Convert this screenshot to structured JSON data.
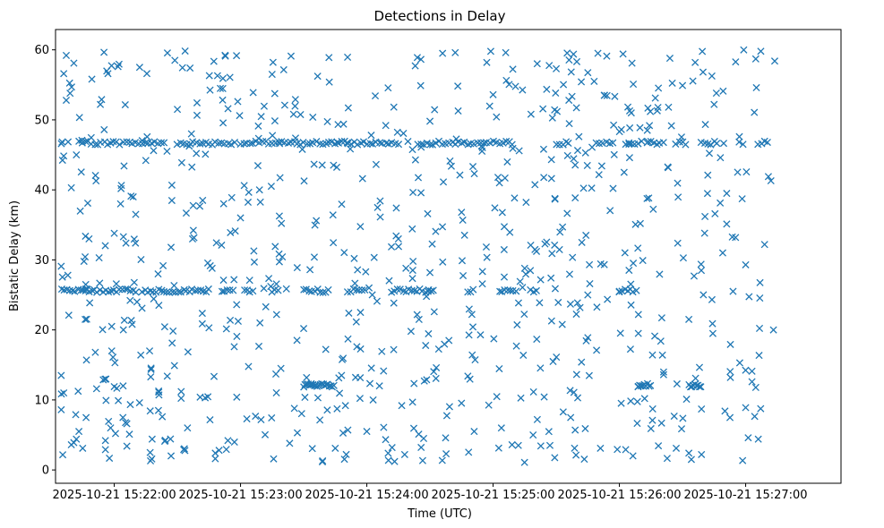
{
  "chart_data": {
    "type": "scatter",
    "title": "Detections in Delay",
    "xlabel": "Time (UTC)",
    "ylabel": "Bistatic Delay (km)",
    "x_unit": "minutes since 15:21:00",
    "xlim": [
      0.535,
      6.755
    ],
    "ylim": [
      -1.9,
      62.9
    ],
    "xticks": [
      {
        "value": 1,
        "label": "2025-10-21 15:22:00"
      },
      {
        "value": 2,
        "label": "2025-10-21 15:23:00"
      },
      {
        "value": 3,
        "label": "2025-10-21 15:24:00"
      },
      {
        "value": 4,
        "label": "2025-10-21 15:25:00"
      },
      {
        "value": 5,
        "label": "2025-10-21 15:26:00"
      },
      {
        "value": 6,
        "label": "2025-10-21 15:27:00"
      }
    ],
    "yticks": [
      {
        "value": 0,
        "label": "0"
      },
      {
        "value": 10,
        "label": "10"
      },
      {
        "value": 20,
        "label": "20"
      },
      {
        "value": 30,
        "label": "30"
      },
      {
        "value": 40,
        "label": "40"
      },
      {
        "value": 50,
        "label": "50"
      },
      {
        "value": 60,
        "label": "60"
      }
    ],
    "marker": "x",
    "color": "#1f77b4",
    "band_tracks": [
      {
        "y": 46.7,
        "x_ranges": [
          [
            0.58,
            0.6
          ],
          [
            0.72,
            1.4
          ],
          [
            1.5,
            1.95
          ],
          [
            2.0,
            3.25
          ],
          [
            3.4,
            4.15
          ],
          [
            4.5,
            4.62
          ],
          [
            4.82,
            4.95
          ],
          [
            5.05,
            5.18
          ],
          [
            5.22,
            5.35
          ],
          [
            5.45,
            5.55
          ],
          [
            5.65,
            5.8
          ],
          [
            5.95,
            6.0
          ],
          [
            6.1,
            6.2
          ]
        ],
        "step": 0.025
      },
      {
        "y": 25.6,
        "x_ranges": [
          [
            0.58,
            1.18
          ],
          [
            1.22,
            1.75
          ],
          [
            1.85,
            1.95
          ],
          [
            2.05,
            2.1
          ],
          [
            2.25,
            2.3
          ],
          [
            2.5,
            2.7
          ],
          [
            2.85,
            3.0
          ],
          [
            3.2,
            3.55
          ],
          [
            3.8,
            3.85
          ],
          [
            4.05,
            4.2
          ],
          [
            4.3,
            4.35
          ],
          [
            5.0,
            5.15
          ]
        ],
        "step": 0.022
      },
      {
        "y": 12.1,
        "x_ranges": [
          [
            2.5,
            2.75
          ],
          [
            5.15,
            5.25
          ],
          [
            5.55,
            5.65
          ]
        ],
        "step": 0.012
      }
    ],
    "scatter_seed": 7,
    "scatter_count": 620,
    "scatter_x_range": [
      0.58,
      6.12
    ],
    "scatter_y_range": [
      1.0,
      60.0
    ],
    "points": [
      [
        0.58,
        13.5
      ],
      [
        0.58,
        8.6
      ],
      [
        0.6,
        11.0
      ],
      [
        0.62,
        59.2
      ],
      [
        0.6,
        56.6
      ],
      [
        0.62,
        52.8
      ],
      [
        0.65,
        53.8
      ],
      [
        0.66,
        40.3
      ],
      [
        0.68,
        58.1
      ],
      [
        0.7,
        45.0
      ],
      [
        0.64,
        22.1
      ],
      [
        0.68,
        3.9
      ],
      [
        0.66,
        3.6
      ],
      [
        0.7,
        4.4
      ],
      [
        0.72,
        5.5
      ],
      [
        0.75,
        3.1
      ],
      [
        0.77,
        21.5
      ],
      [
        0.78,
        15.7
      ],
      [
        0.79,
        38.1
      ],
      [
        0.8,
        33.0
      ],
      [
        0.85,
        16.8
      ],
      [
        0.86,
        11.6
      ],
      [
        0.88,
        30.3
      ],
      [
        0.89,
        52.2
      ],
      [
        0.9,
        52.9
      ],
      [
        0.92,
        48.6
      ],
      [
        0.93,
        4.2
      ],
      [
        0.93,
        2.9
      ],
      [
        0.95,
        56.6
      ],
      [
        0.98,
        17.0
      ],
      [
        0.98,
        20.5
      ],
      [
        0.99,
        16.1
      ],
      [
        1.0,
        33.8
      ],
      [
        1.0,
        11.9
      ],
      [
        1.01,
        5.2
      ],
      [
        1.03,
        57.6
      ],
      [
        1.05,
        38.0
      ],
      [
        1.07,
        12.0
      ],
      [
        1.1,
        3.4
      ],
      [
        1.1,
        6.6
      ],
      [
        1.12,
        5.1
      ],
      [
        1.15,
        39.0
      ],
      [
        1.17,
        36.5
      ],
      [
        1.18,
        24.0
      ],
      [
        1.2,
        9.6
      ],
      [
        1.22,
        23.1
      ],
      [
        1.25,
        44.2
      ],
      [
        1.28,
        17.0
      ],
      [
        1.3,
        4.4
      ],
      [
        1.35,
        8.5
      ],
      [
        1.38,
        7.6
      ],
      [
        1.4,
        4.1
      ],
      [
        1.42,
        13.4
      ],
      [
        1.45,
        31.8
      ],
      [
        1.45,
        2.0
      ],
      [
        1.48,
        58.5
      ],
      [
        1.5,
        51.5
      ],
      [
        1.53,
        11.2
      ],
      [
        1.55,
        2.9
      ],
      [
        1.58,
        6.0
      ],
      [
        1.6,
        57.4
      ],
      [
        1.62,
        33.0
      ],
      [
        1.65,
        45.2
      ],
      [
        1.68,
        10.4
      ],
      [
        1.7,
        38.5
      ],
      [
        1.72,
        10.3
      ],
      [
        1.75,
        20.3
      ],
      [
        1.8,
        1.6
      ],
      [
        1.8,
        2.4
      ],
      [
        1.83,
        2.8
      ],
      [
        1.85,
        32.1
      ],
      [
        1.88,
        59.1
      ],
      [
        1.9,
        4.2
      ],
      [
        1.92,
        33.9
      ],
      [
        1.95,
        17.6
      ],
      [
        1.97,
        10.4
      ],
      [
        2.0,
        36.0
      ],
      [
        2.05,
        7.3
      ],
      [
        2.1,
        53.9
      ],
      [
        2.15,
        40.0
      ],
      [
        2.2,
        23.3
      ],
      [
        2.25,
        56.5
      ],
      [
        2.28,
        13.7
      ],
      [
        2.32,
        14.5
      ],
      [
        2.35,
        52.1
      ],
      [
        2.4,
        59.1
      ],
      [
        2.45,
        5.3
      ],
      [
        2.5,
        20.2
      ],
      [
        2.55,
        28.6
      ],
      [
        2.6,
        35.6
      ],
      [
        2.65,
        1.3
      ],
      [
        2.7,
        58.9
      ],
      [
        2.75,
        3.1
      ],
      [
        2.8,
        13.5
      ],
      [
        2.85,
        5.7
      ],
      [
        2.9,
        30.2
      ],
      [
        2.95,
        22.5
      ],
      [
        3.0,
        5.5
      ],
      [
        3.05,
        10.0
      ],
      [
        3.1,
        12.0
      ],
      [
        3.15,
        49.2
      ],
      [
        3.2,
        3.2
      ],
      [
        3.22,
        1.2
      ],
      [
        3.25,
        33.0
      ],
      [
        3.3,
        2.2
      ],
      [
        3.35,
        19.8
      ],
      [
        3.4,
        58.9
      ],
      [
        3.45,
        4.5
      ],
      [
        3.5,
        49.8
      ],
      [
        3.55,
        14.6
      ],
      [
        3.6,
        59.5
      ],
      [
        3.65,
        18.5
      ],
      [
        3.7,
        59.6
      ],
      [
        3.75,
        36.8
      ],
      [
        3.8,
        13.4
      ],
      [
        3.85,
        5.5
      ],
      [
        3.9,
        19.3
      ],
      [
        3.95,
        58.2
      ],
      [
        4.0,
        53.6
      ],
      [
        4.05,
        41.0
      ],
      [
        4.1,
        59.6
      ],
      [
        4.15,
        3.6
      ],
      [
        4.2,
        3.5
      ],
      [
        4.25,
        28.8
      ],
      [
        4.3,
        50.8
      ],
      [
        4.35,
        7.2
      ],
      [
        4.4,
        45.8
      ],
      [
        4.45,
        3.5
      ],
      [
        4.5,
        57.3
      ],
      [
        4.55,
        34.7
      ],
      [
        4.6,
        52.8
      ],
      [
        4.65,
        5.7
      ],
      [
        4.7,
        15.4
      ],
      [
        4.75,
        18.9
      ],
      [
        4.8,
        55.5
      ],
      [
        4.85,
        3.1
      ],
      [
        4.9,
        59.1
      ],
      [
        4.95,
        40.2
      ],
      [
        5.0,
        25.5
      ],
      [
        5.05,
        2.9
      ],
      [
        5.1,
        58.1
      ],
      [
        5.15,
        19.5
      ],
      [
        5.2,
        10.2
      ],
      [
        5.25,
        5.9
      ],
      [
        5.3,
        51.3
      ],
      [
        5.35,
        13.6
      ],
      [
        5.4,
        58.8
      ],
      [
        5.45,
        3.1
      ],
      [
        5.5,
        54.9
      ],
      [
        5.55,
        21.5
      ],
      [
        5.6,
        58.2
      ],
      [
        5.65,
        2.2
      ],
      [
        5.7,
        42.1
      ],
      [
        5.75,
        52.2
      ],
      [
        5.8,
        44.6
      ],
      [
        5.85,
        39.5
      ],
      [
        5.9,
        25.5
      ],
      [
        5.95,
        47.6
      ],
      [
        6.0,
        8.9
      ],
      [
        6.02,
        4.6
      ],
      [
        6.05,
        14.1
      ],
      [
        6.08,
        58.7
      ],
      [
        6.1,
        4.4
      ],
      [
        6.12,
        59.8
      ],
      [
        6.15,
        32.2
      ],
      [
        6.18,
        41.9
      ],
      [
        6.2,
        41.3
      ],
      [
        6.22,
        20.0
      ],
      [
        6.23,
        58.4
      ],
      [
        5.55,
        2.4
      ],
      [
        5.57,
        1.5
      ],
      [
        5.65,
        8.7
      ],
      [
        6.0,
        29.3
      ],
      [
        6.05,
        12.6
      ],
      [
        5.92,
        33.2
      ]
    ]
  }
}
